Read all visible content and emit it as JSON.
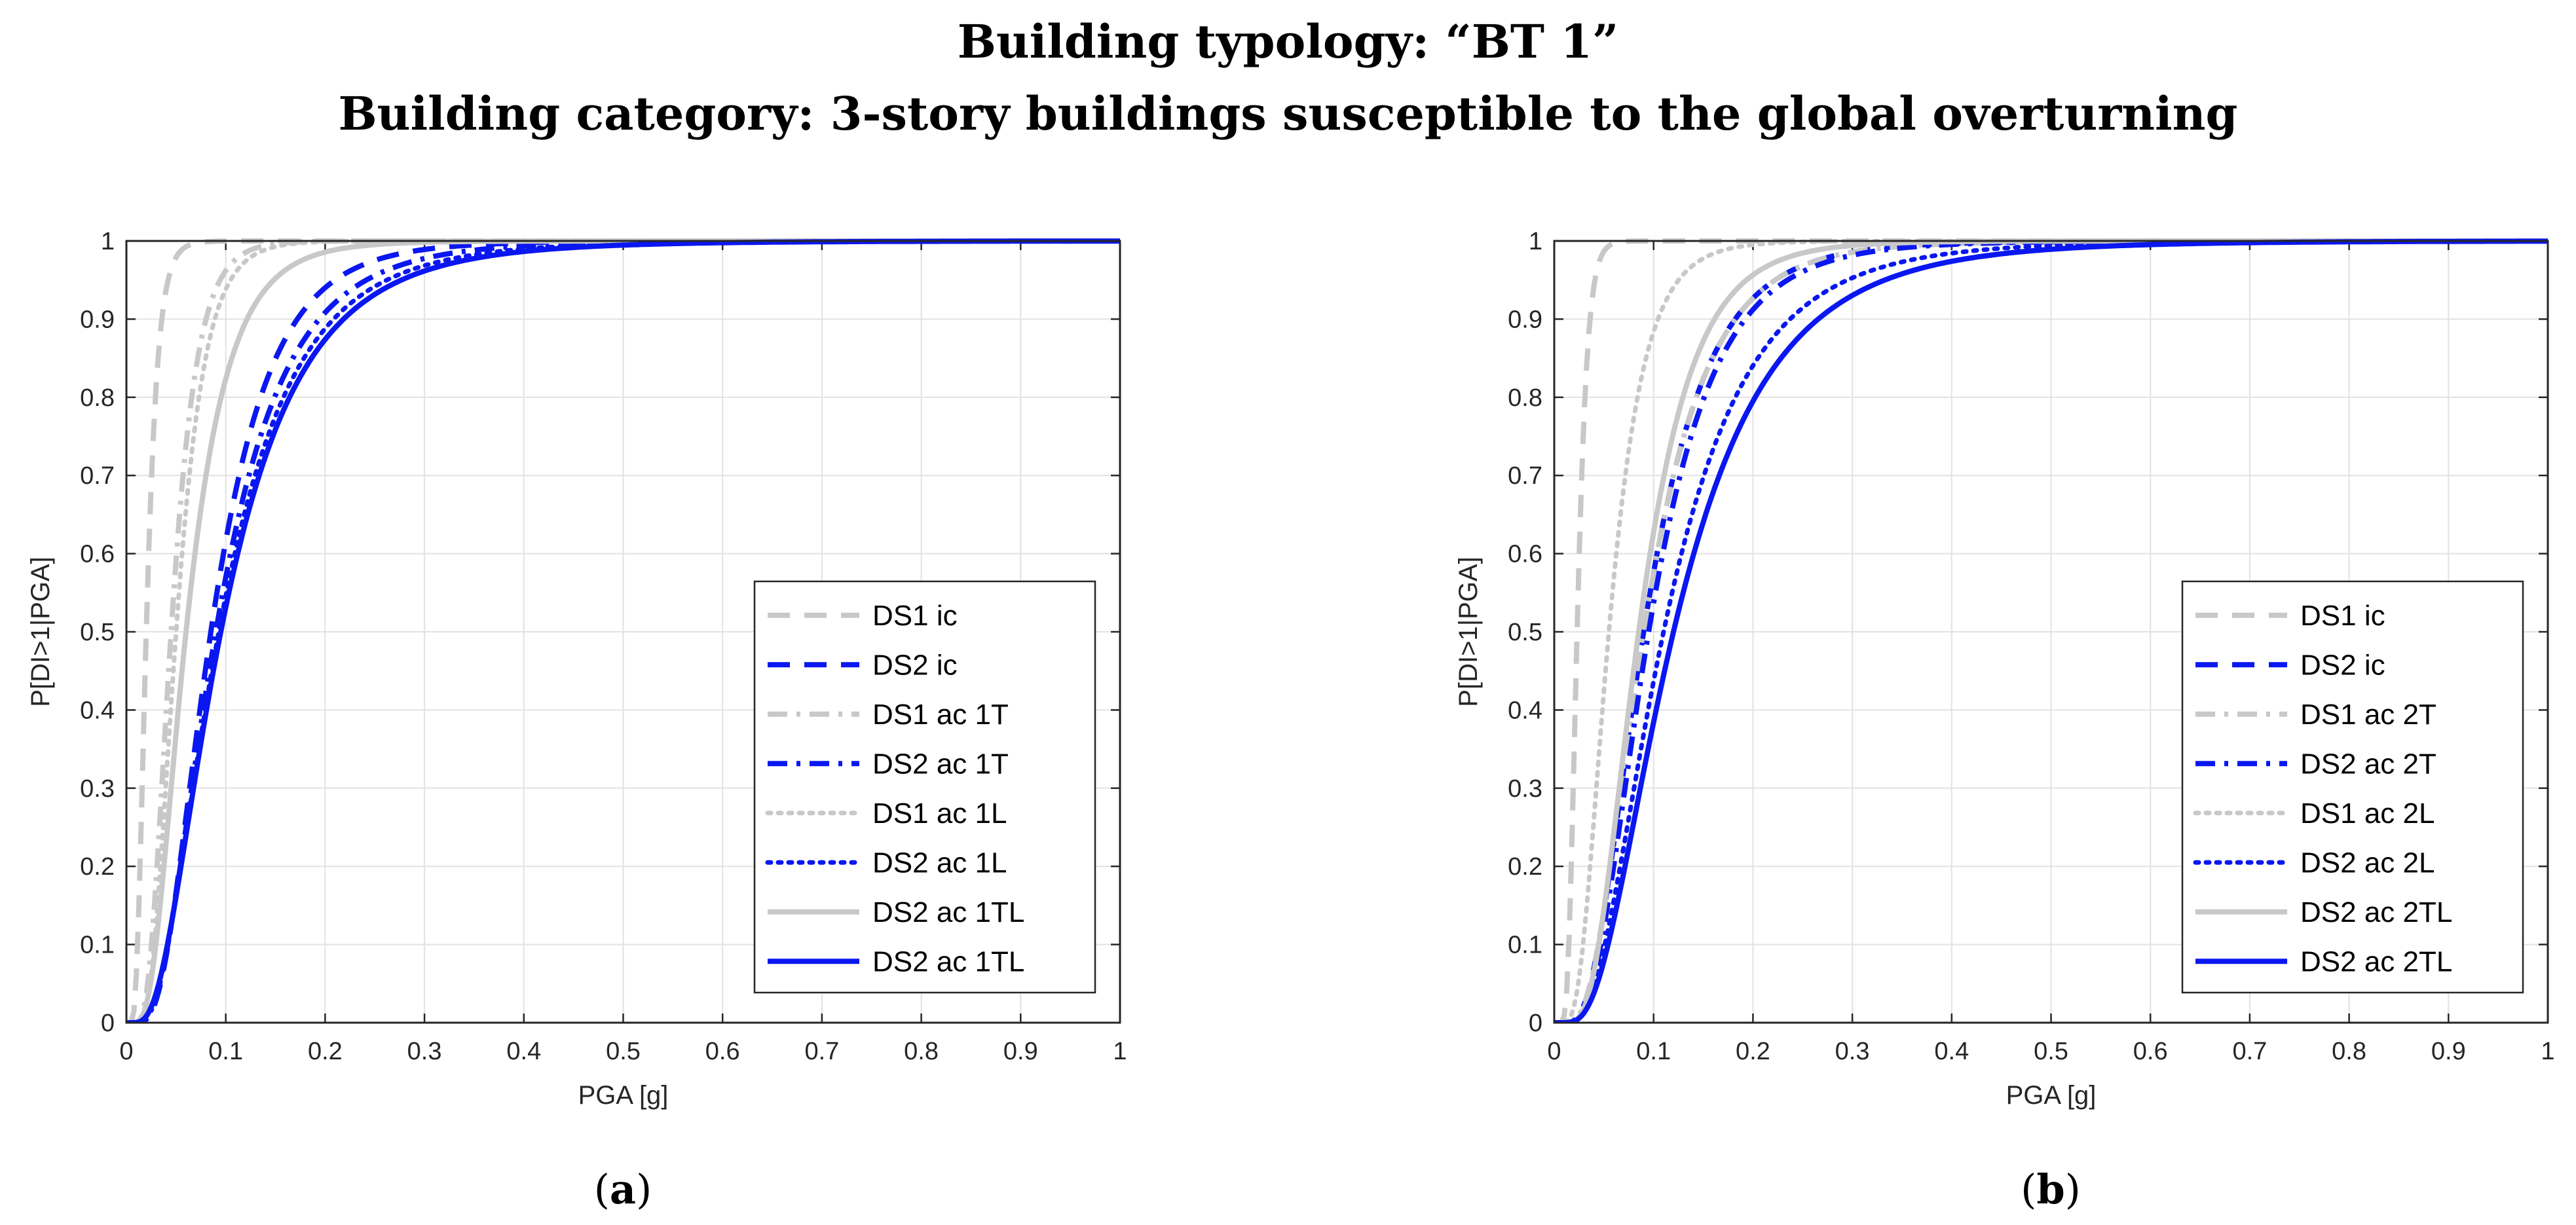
{
  "figure": {
    "title_line_1": "Building typology: “BT 1”",
    "title_line_2": "Building category: 3-story buildings susceptible to the global overturning"
  },
  "colors": {
    "grey": "#c8c8c8",
    "blue": "#0a17f0",
    "axis": "#262626",
    "grid": "#e2e2e2"
  },
  "chart_data": [
    {
      "type": "line",
      "panel_label": "a",
      "xlabel": "PGA [g]",
      "ylabel": "P[DI>1|PGA]",
      "xlim": [
        0,
        1
      ],
      "ylim": [
        0,
        1
      ],
      "xticks": [
        "0",
        "0.1",
        "0.2",
        "0.3",
        "0.4",
        "0.5",
        "0.6",
        "0.7",
        "0.8",
        "0.9",
        "1"
      ],
      "yticks": [
        "0",
        "0.1",
        "0.2",
        "0.3",
        "0.4",
        "0.5",
        "0.6",
        "0.7",
        "0.8",
        "0.9",
        "1"
      ],
      "grid": true,
      "legend_position": "bottom-right",
      "series": [
        {
          "name": "DS1 ic",
          "color": "grey",
          "style": "dashed",
          "median": 0.02,
          "beta": 0.45
        },
        {
          "name": "DS2 ic",
          "color": "blue",
          "style": "dashed",
          "median": 0.085,
          "beta": 0.55
        },
        {
          "name": "DS1 ac 1T",
          "color": "grey",
          "style": "dashdot",
          "median": 0.045,
          "beta": 0.45
        },
        {
          "name": "DS2 ac 1T",
          "color": "blue",
          "style": "dashdot",
          "median": 0.09,
          "beta": 0.6
        },
        {
          "name": "DS1 ac 1L",
          "color": "grey",
          "style": "dotted",
          "median": 0.05,
          "beta": 0.45
        },
        {
          "name": "DS2 ac 1L",
          "color": "blue",
          "style": "dotted",
          "median": 0.093,
          "beta": 0.63
        },
        {
          "name": "DS2 ac 1TL",
          "color": "grey",
          "style": "solid",
          "median": 0.06,
          "beta": 0.55
        },
        {
          "name": "DS2 ac 1TL",
          "color": "blue",
          "style": "solid",
          "median": 0.095,
          "beta": 0.65
        }
      ]
    },
    {
      "type": "line",
      "panel_label": "b",
      "xlabel": "PGA [g]",
      "ylabel": "P[DI>1|PGA]",
      "xlim": [
        0,
        1
      ],
      "ylim": [
        0,
        1
      ],
      "xticks": [
        "0",
        "0.1",
        "0.2",
        "0.3",
        "0.4",
        "0.5",
        "0.6",
        "0.7",
        "0.8",
        "0.9",
        "1"
      ],
      "yticks": [
        "0",
        "0.1",
        "0.2",
        "0.3",
        "0.4",
        "0.5",
        "0.6",
        "0.7",
        "0.8",
        "0.9",
        "1"
      ],
      "grid": true,
      "legend_position": "bottom-right",
      "series": [
        {
          "name": "DS1 ic",
          "color": "grey",
          "style": "dashed",
          "median": 0.023,
          "beta": 0.35
        },
        {
          "name": "DS2 ic",
          "color": "blue",
          "style": "dashed",
          "median": 0.09,
          "beta": 0.55
        },
        {
          "name": "DS1 ac 2T",
          "color": "grey",
          "style": "dashdot",
          "median": 0.09,
          "beta": 0.55
        },
        {
          "name": "DS2 ac 2T",
          "color": "blue",
          "style": "dashdot",
          "median": 0.095,
          "beta": 0.55
        },
        {
          "name": "DS1 ac 2L",
          "color": "grey",
          "style": "dotted",
          "median": 0.055,
          "beta": 0.5
        },
        {
          "name": "DS2 ac 2L",
          "color": "blue",
          "style": "dotted",
          "median": 0.11,
          "beta": 0.6
        },
        {
          "name": "DS2 ac 2TL",
          "color": "grey",
          "style": "solid",
          "median": 0.085,
          "beta": 0.5
        },
        {
          "name": "DS2 ac 2TL",
          "color": "blue",
          "style": "solid",
          "median": 0.12,
          "beta": 0.62
        }
      ]
    }
  ]
}
